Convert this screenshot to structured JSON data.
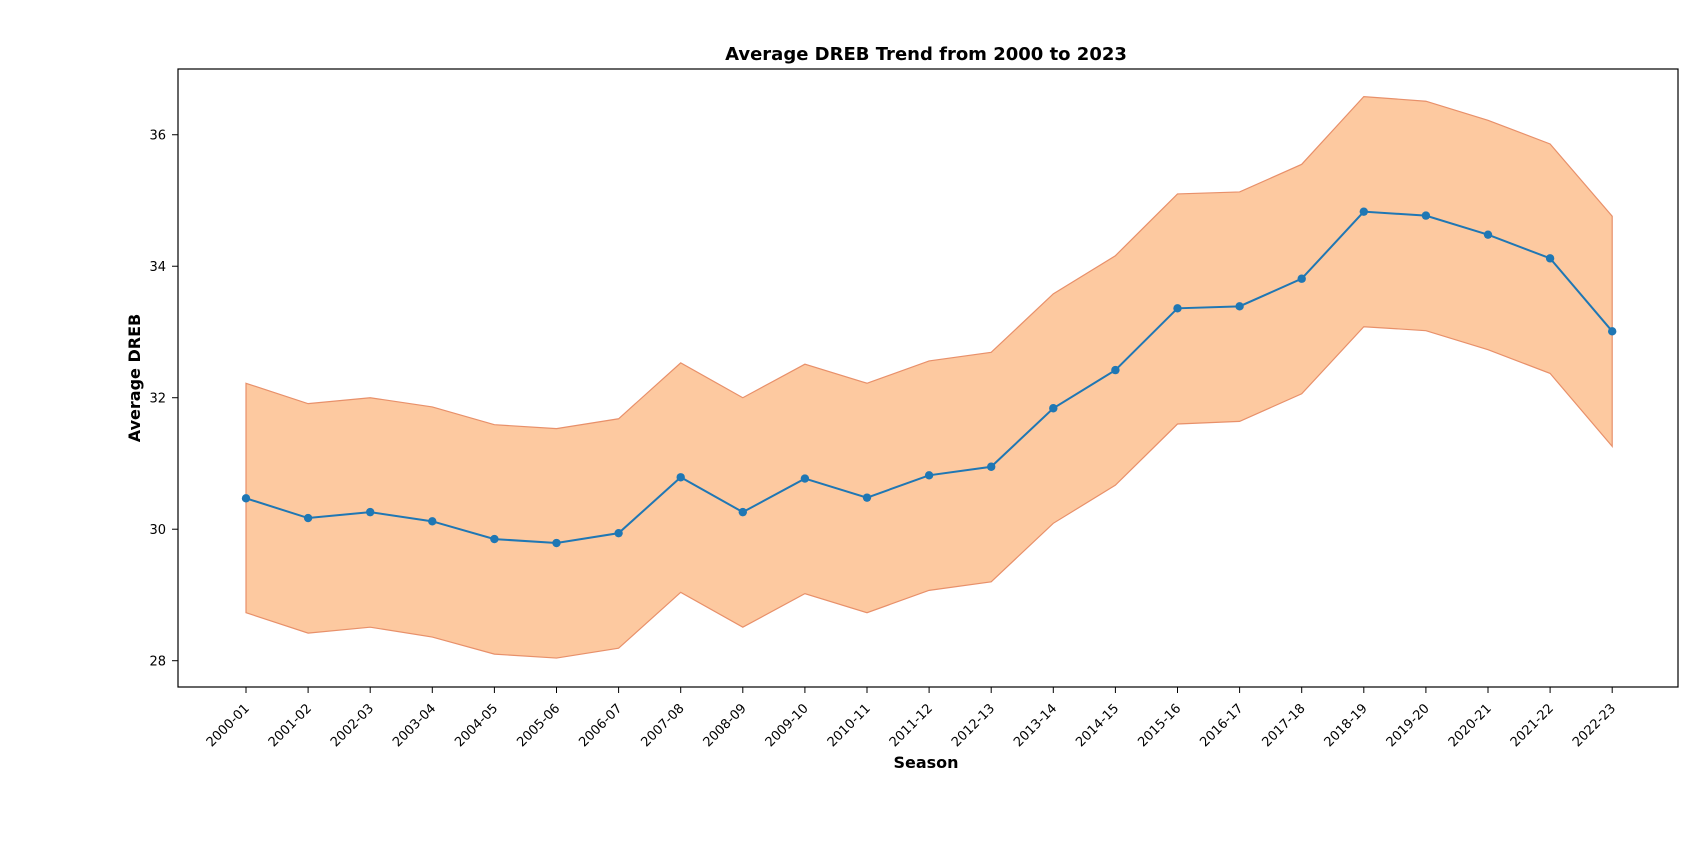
{
  "chart_data": {
    "type": "line",
    "title": "Average DREB Trend from 2000 to 2023",
    "xlabel": "Season",
    "ylabel": "Average DREB",
    "ylim": [
      27.6,
      37.0
    ],
    "yticks": [
      28,
      30,
      32,
      34,
      36
    ],
    "grid": false,
    "categories": [
      "2000-01",
      "2001-02",
      "2002-03",
      "2003-04",
      "2004-05",
      "2005-06",
      "2006-07",
      "2007-08",
      "2008-09",
      "2009-10",
      "2010-11",
      "2011-12",
      "2012-13",
      "2013-14",
      "2014-15",
      "2015-16",
      "2016-17",
      "2017-18",
      "2018-19",
      "2019-20",
      "2020-21",
      "2021-22",
      "2022-23"
    ],
    "series": [
      {
        "values": [
          30.47,
          30.17,
          30.26,
          30.12,
          29.85,
          29.79,
          29.94,
          30.79,
          30.26,
          30.77,
          30.48,
          30.82,
          30.95,
          31.84,
          32.42,
          33.36,
          33.39,
          33.81,
          34.83,
          34.77,
          34.48,
          34.12,
          33.01
        ],
        "lower": [
          28.73,
          28.42,
          28.51,
          28.36,
          28.1,
          28.04,
          28.19,
          29.04,
          28.51,
          29.02,
          28.73,
          29.07,
          29.2,
          30.09,
          30.67,
          31.6,
          31.64,
          32.06,
          33.08,
          33.02,
          32.73,
          32.37,
          31.26
        ],
        "upper": [
          32.22,
          31.91,
          32.0,
          31.86,
          31.59,
          31.53,
          31.68,
          32.53,
          32.0,
          32.51,
          32.22,
          32.56,
          32.69,
          33.58,
          34.16,
          35.1,
          35.13,
          35.55,
          36.58,
          36.51,
          36.22,
          35.86,
          34.76
        ],
        "line_color": "#1f77b4",
        "band_fill_color": "#fdc9a0",
        "band_edge_color": "#e8906a"
      }
    ]
  }
}
